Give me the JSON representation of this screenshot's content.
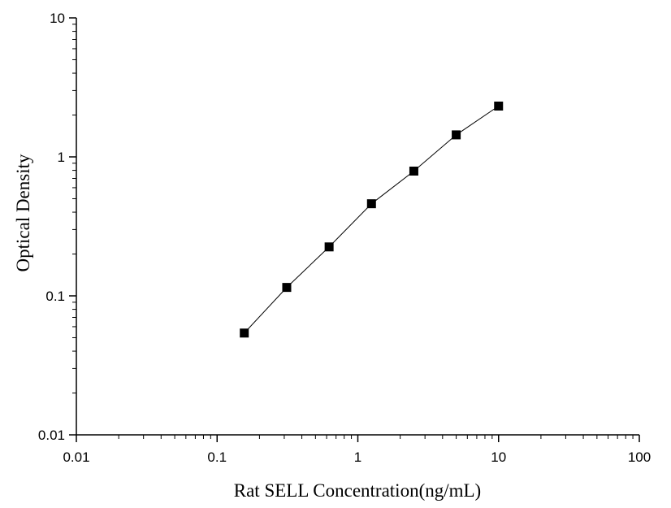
{
  "chart_data": {
    "type": "scatter",
    "xlabel": "Rat SELL Concentration(ng/mL)",
    "ylabel": "Optical Density",
    "xscale": "log",
    "yscale": "log",
    "xlim": [
      0.01,
      100
    ],
    "ylim": [
      0.01,
      10
    ],
    "x_ticks": [
      "0.01",
      "0.1",
      "1",
      "10",
      "100"
    ],
    "y_ticks": [
      "0.01",
      "0.1",
      "1",
      "10"
    ],
    "grid": false,
    "legend": "none",
    "marker": "square",
    "line": "connected",
    "colors": {
      "marker": "#000000",
      "line": "#000000",
      "axis": "#000000"
    },
    "series": [
      {
        "x": [
          0.156,
          0.3125,
          0.625,
          1.25,
          2.5,
          5,
          10
        ],
        "y": [
          0.054,
          0.115,
          0.225,
          0.46,
          0.79,
          1.44,
          2.32
        ]
      }
    ]
  }
}
